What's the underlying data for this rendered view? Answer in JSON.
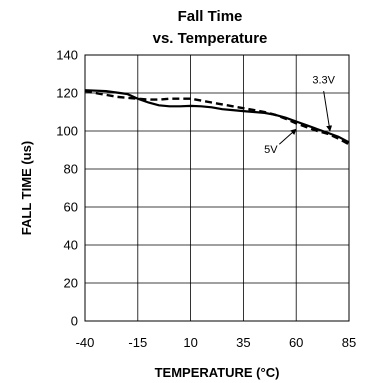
{
  "chart_data": {
    "type": "line",
    "title_line1": "Fall Time",
    "title_line2": "vs. Temperature",
    "xlabel": "TEMPERATURE (°C)",
    "ylabel": "FALL TIME (us)",
    "xlim": [
      -40,
      85
    ],
    "ylim": [
      0,
      140
    ],
    "x_ticks": [
      "-40",
      "-15",
      "10",
      "35",
      "60",
      "85"
    ],
    "y_ticks": [
      "0",
      "20",
      "40",
      "60",
      "80",
      "100",
      "120",
      "140"
    ],
    "grid": true,
    "series": [
      {
        "name": "3.3V",
        "style": "solid",
        "color": "#000000",
        "points": [
          [
            -40,
            121.5
          ],
          [
            -30,
            121
          ],
          [
            -20,
            119.5
          ],
          [
            -15,
            117
          ],
          [
            -10,
            115
          ],
          [
            -5,
            113.5
          ],
          [
            0,
            113
          ],
          [
            5,
            113
          ],
          [
            10,
            113.2
          ],
          [
            15,
            113
          ],
          [
            20,
            112.5
          ],
          [
            25,
            111.5
          ],
          [
            30,
            111
          ],
          [
            35,
            110.5
          ],
          [
            40,
            110
          ],
          [
            45,
            109.5
          ],
          [
            50,
            108.5
          ],
          [
            55,
            107
          ],
          [
            60,
            105
          ],
          [
            65,
            103
          ],
          [
            70,
            101
          ],
          [
            75,
            99
          ],
          [
            80,
            97
          ],
          [
            85,
            94
          ]
        ]
      },
      {
        "name": "5V",
        "style": "dashed",
        "color": "#000000",
        "points": [
          [
            -40,
            121
          ],
          [
            -35,
            120
          ],
          [
            -30,
            119
          ],
          [
            -25,
            118
          ],
          [
            -20,
            117.5
          ],
          [
            -15,
            117
          ],
          [
            -10,
            116.5
          ],
          [
            -5,
            116.5
          ],
          [
            0,
            117
          ],
          [
            5,
            117
          ],
          [
            10,
            117
          ],
          [
            15,
            116
          ],
          [
            20,
            115
          ],
          [
            25,
            114
          ],
          [
            30,
            113
          ],
          [
            35,
            112
          ],
          [
            40,
            111
          ],
          [
            45,
            110
          ],
          [
            50,
            108.5
          ],
          [
            55,
            106.5
          ],
          [
            60,
            104
          ],
          [
            65,
            102
          ],
          [
            70,
            100
          ],
          [
            75,
            98.5
          ],
          [
            80,
            96
          ],
          [
            85,
            93
          ]
        ]
      }
    ],
    "annotations": [
      {
        "text": "3.3V",
        "series": "3.3V"
      },
      {
        "text": "5V",
        "series": "5V"
      }
    ]
  }
}
